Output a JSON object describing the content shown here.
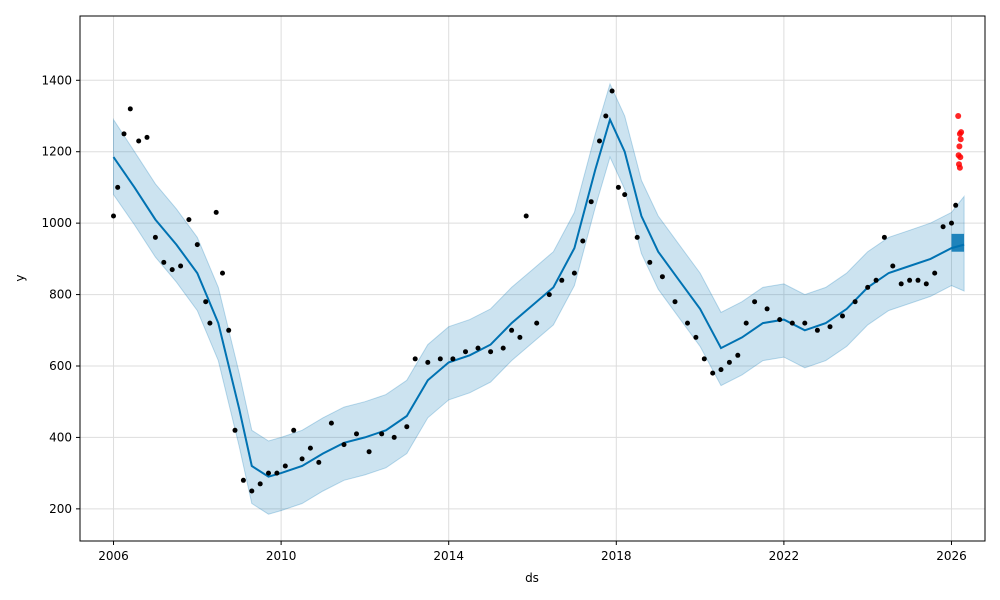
{
  "chart_data": {
    "type": "line",
    "title": "",
    "xlabel": "ds",
    "ylabel": "y",
    "xlim": [
      2005.2,
      2026.8
    ],
    "ylim": [
      110,
      1580
    ],
    "x_ticks": [
      2006,
      2010,
      2014,
      2018,
      2022,
      2026
    ],
    "y_ticks": [
      200,
      400,
      600,
      800,
      1000,
      1200,
      1400
    ],
    "grid": true,
    "legend": "none",
    "colors": {
      "observed": "#000000",
      "forecast_line": "#0072B2",
      "uncertainty_band": "#0072B2",
      "recent_points": "#ff0000",
      "grid": "#dddddd"
    },
    "series": [
      {
        "name": "",
        "role": "forecast",
        "x": [
          2006.0,
          2006.5,
          2007.0,
          2007.5,
          2008.0,
          2008.5,
          2009.0,
          2009.3,
          2009.7,
          2010.0,
          2010.5,
          2011.0,
          2011.5,
          2012.0,
          2012.5,
          2013.0,
          2013.5,
          2014.0,
          2014.5,
          2015.0,
          2015.5,
          2016.0,
          2016.5,
          2017.0,
          2017.5,
          2017.85,
          2018.2,
          2018.6,
          2019.0,
          2019.5,
          2020.0,
          2020.5,
          2021.0,
          2021.5,
          2022.0,
          2022.5,
          2023.0,
          2023.5,
          2024.0,
          2024.5,
          2025.0,
          2025.5,
          2026.0,
          2026.3
        ],
        "y": [
          1185,
          1100,
          1010,
          940,
          860,
          720,
          480,
          320,
          290,
          300,
          320,
          355,
          385,
          400,
          420,
          460,
          560,
          610,
          630,
          660,
          720,
          770,
          820,
          930,
          1150,
          1290,
          1200,
          1020,
          920,
          840,
          760,
          650,
          680,
          720,
          730,
          700,
          720,
          760,
          820,
          860,
          880,
          900,
          930,
          940
        ]
      },
      {
        "name": "",
        "role": "uncertainty_band",
        "x": [
          2006.0,
          2006.5,
          2007.0,
          2007.5,
          2008.0,
          2008.5,
          2009.0,
          2009.3,
          2009.7,
          2010.0,
          2010.5,
          2011.0,
          2011.5,
          2012.0,
          2012.5,
          2013.0,
          2013.5,
          2014.0,
          2014.5,
          2015.0,
          2015.5,
          2016.0,
          2016.5,
          2017.0,
          2017.5,
          2017.85,
          2018.2,
          2018.6,
          2019.0,
          2019.5,
          2020.0,
          2020.5,
          2021.0,
          2021.5,
          2022.0,
          2022.5,
          2023.0,
          2023.5,
          2024.0,
          2024.5,
          2025.0,
          2025.5,
          2026.0,
          2026.3
        ],
        "upper": [
          1290,
          1200,
          1110,
          1040,
          960,
          820,
          580,
          420,
          390,
          400,
          420,
          455,
          485,
          500,
          520,
          560,
          660,
          710,
          730,
          760,
          820,
          870,
          920,
          1030,
          1250,
          1390,
          1300,
          1120,
          1020,
          940,
          860,
          750,
          780,
          820,
          830,
          800,
          820,
          860,
          920,
          960,
          980,
          1000,
          1030,
          1075
        ],
        "lower": [
          1080,
          995,
          905,
          835,
          755,
          615,
          375,
          215,
          185,
          195,
          215,
          250,
          280,
          295,
          315,
          355,
          455,
          505,
          525,
          555,
          615,
          665,
          715,
          825,
          1045,
          1185,
          1095,
          915,
          815,
          735,
          655,
          545,
          575,
          615,
          625,
          595,
          615,
          655,
          715,
          755,
          775,
          795,
          825,
          810
        ]
      },
      {
        "name": "",
        "role": "observed",
        "x": [
          2006.0,
          2006.1,
          2006.25,
          2006.4,
          2006.6,
          2006.8,
          2007.0,
          2007.2,
          2007.4,
          2007.6,
          2007.8,
          2008.0,
          2008.2,
          2008.3,
          2008.45,
          2008.6,
          2008.75,
          2008.9,
          2009.1,
          2009.3,
          2009.5,
          2009.7,
          2009.9,
          2010.1,
          2010.3,
          2010.5,
          2010.7,
          2010.9,
          2011.2,
          2011.5,
          2011.8,
          2012.1,
          2012.4,
          2012.7,
          2013.0,
          2013.2,
          2013.5,
          2013.8,
          2014.1,
          2014.4,
          2014.7,
          2015.0,
          2015.3,
          2015.5,
          2015.7,
          2015.85,
          2016.1,
          2016.4,
          2016.7,
          2017.0,
          2017.2,
          2017.4,
          2017.6,
          2017.75,
          2017.9,
          2018.05,
          2018.2,
          2018.5,
          2018.8,
          2019.1,
          2019.4,
          2019.7,
          2019.9,
          2020.1,
          2020.3,
          2020.5,
          2020.7,
          2020.9,
          2021.1,
          2021.3,
          2021.6,
          2021.9,
          2022.2,
          2022.5,
          2022.8,
          2023.1,
          2023.4,
          2023.7,
          2024.0,
          2024.2,
          2024.4,
          2024.6,
          2024.8,
          2025.0,
          2025.2,
          2025.4,
          2025.6,
          2025.8,
          2026.0,
          2026.1
        ],
        "y": [
          1020,
          1100,
          1250,
          1320,
          1230,
          1240,
          960,
          890,
          870,
          880,
          1010,
          940,
          780,
          720,
          1030,
          860,
          700,
          420,
          280,
          250,
          270,
          300,
          300,
          320,
          420,
          340,
          370,
          330,
          440,
          380,
          410,
          360,
          410,
          400,
          430,
          620,
          610,
          620,
          620,
          640,
          650,
          640,
          650,
          700,
          680,
          1020,
          720,
          800,
          840,
          860,
          950,
          1060,
          1230,
          1300,
          1370,
          1100,
          1080,
          960,
          890,
          850,
          780,
          720,
          680,
          620,
          580,
          590,
          610,
          630,
          720,
          780,
          760,
          730,
          720,
          720,
          700,
          710,
          740,
          780,
          820,
          840,
          960,
          880,
          830,
          840,
          840,
          830,
          860,
          990,
          1000,
          1050
        ]
      },
      {
        "name": "",
        "role": "recent",
        "x": [
          2026.16,
          2026.18,
          2026.2,
          2026.17,
          2026.21,
          2026.19,
          2026.22,
          2026.2,
          2026.23
        ],
        "y": [
          1300,
          1165,
          1155,
          1190,
          1185,
          1215,
          1235,
          1250,
          1255
        ]
      }
    ]
  }
}
